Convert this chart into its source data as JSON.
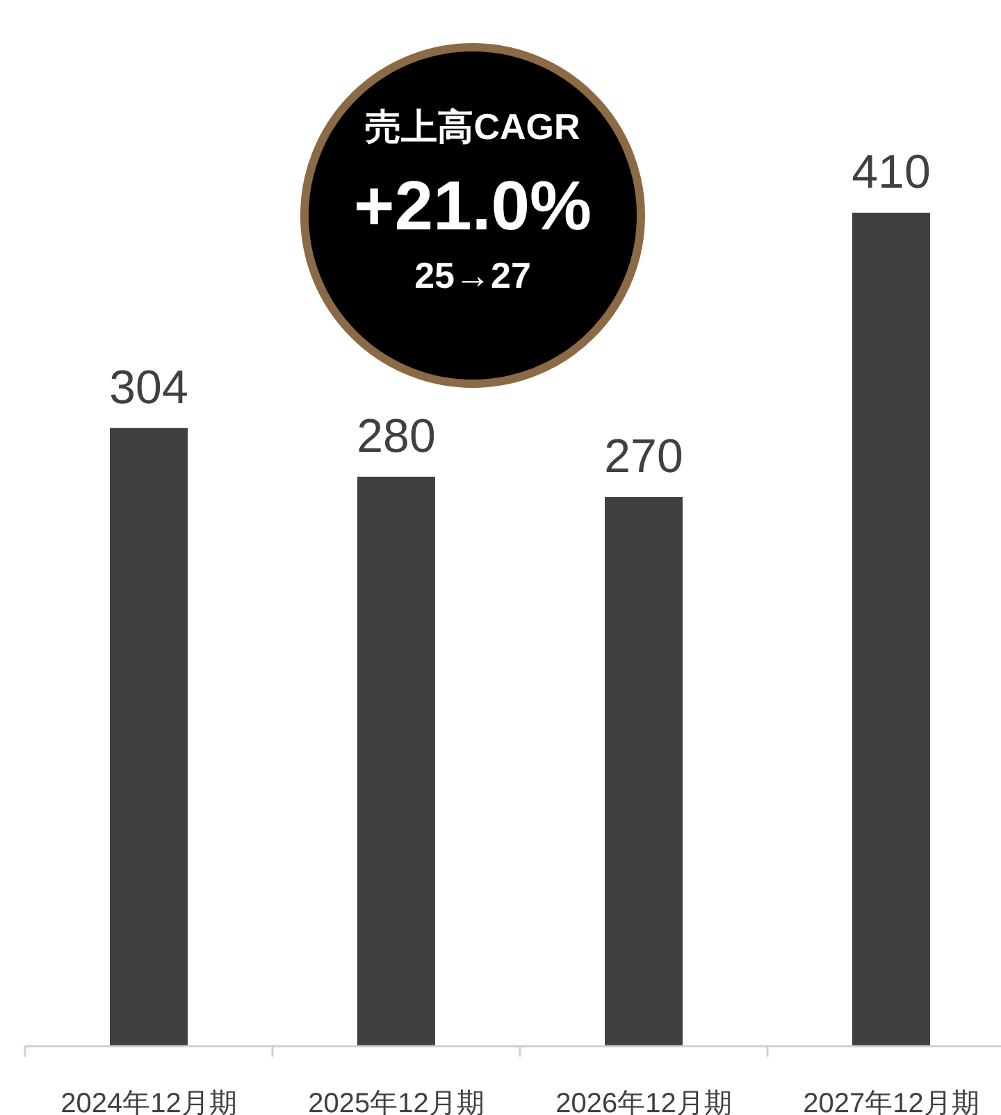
{
  "chart_data": {
    "type": "bar",
    "categories": [
      "2024年12月期",
      "2025年12月期",
      "2026年12月期",
      "2027年12月期"
    ],
    "values": [
      304,
      280,
      270,
      410
    ],
    "color": "#404040",
    "data_labels": true,
    "annotations": [
      "売上高CAGR",
      "+21.0%",
      "25→27"
    ]
  }
}
